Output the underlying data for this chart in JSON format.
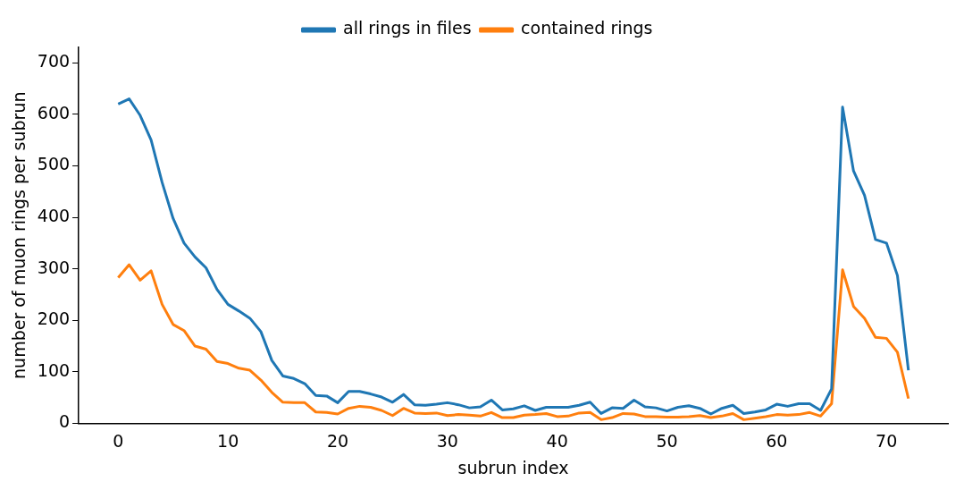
{
  "chart_data": {
    "type": "line",
    "xlabel": "subrun index",
    "ylabel": "number of muon rings per subrun",
    "x": [
      0,
      1,
      2,
      3,
      4,
      5,
      6,
      7,
      8,
      9,
      10,
      11,
      12,
      13,
      14,
      15,
      16,
      17,
      18,
      19,
      20,
      21,
      22,
      23,
      24,
      25,
      26,
      27,
      28,
      29,
      30,
      31,
      32,
      33,
      34,
      35,
      36,
      37,
      38,
      39,
      40,
      41,
      42,
      43,
      44,
      45,
      46,
      47,
      48,
      49,
      50,
      51,
      52,
      53,
      54,
      55,
      56,
      57,
      58,
      59,
      60,
      61,
      62,
      63,
      64,
      65,
      66,
      67,
      68,
      69,
      70,
      71,
      72
    ],
    "series": [
      {
        "name": "all rings in files",
        "color": "#1f77b4",
        "values": [
          620,
          630,
          598,
          550,
          468,
          398,
          350,
          323,
          302,
          260,
          231,
          218,
          204,
          178,
          122,
          92,
          87,
          77,
          54,
          53,
          40,
          62,
          62,
          57,
          51,
          41,
          56,
          36,
          35,
          37,
          40,
          36,
          30,
          32,
          45,
          26,
          28,
          34,
          25,
          31,
          31,
          31,
          35,
          41,
          19,
          30,
          29,
          45,
          32,
          30,
          24,
          31,
          34,
          29,
          18,
          29,
          35,
          19,
          22,
          26,
          37,
          33,
          38,
          38,
          25,
          67,
          614,
          490,
          443,
          357,
          350,
          287,
          103
        ]
      },
      {
        "name": "contained rings",
        "color": "#ff7f0e",
        "values": [
          283,
          308,
          278,
          296,
          231,
          192,
          180,
          150,
          144,
          120,
          116,
          107,
          103,
          84,
          60,
          41,
          40,
          40,
          22,
          21,
          18,
          29,
          33,
          31,
          25,
          15,
          29,
          20,
          19,
          20,
          15,
          17,
          16,
          14,
          21,
          11,
          11,
          16,
          17,
          19,
          13,
          14,
          20,
          21,
          7,
          11,
          19,
          18,
          13,
          13,
          12,
          12,
          13,
          15,
          11,
          14,
          19,
          7,
          10,
          13,
          17,
          16,
          17,
          21,
          14,
          38,
          298,
          227,
          204,
          167,
          165,
          138,
          48
        ]
      }
    ],
    "xlim": [
      -3.6,
      75.6
    ],
    "ylim": [
      0,
      730
    ],
    "xticks": [
      0,
      10,
      20,
      30,
      40,
      50,
      60,
      70
    ],
    "yticks": [
      0,
      100,
      200,
      300,
      400,
      500,
      600,
      700
    ],
    "legend": "top",
    "grid": false,
    "marker": "none",
    "line_style": "solid"
  }
}
